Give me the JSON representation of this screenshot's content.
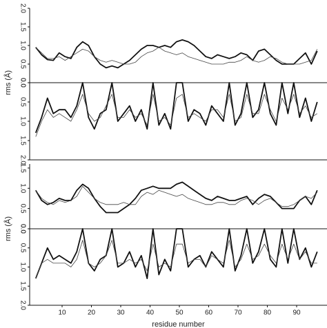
{
  "chart_data": [
    {
      "type": "line",
      "ylabel": "rms (Å)",
      "x": [
        1,
        3,
        5,
        7,
        9,
        11,
        13,
        15,
        17,
        19,
        21,
        23,
        25,
        27,
        29,
        31,
        33,
        35,
        37,
        39,
        41,
        43,
        45,
        47,
        49,
        51,
        53,
        55,
        57,
        59,
        61,
        63,
        65,
        67,
        69,
        71,
        73,
        75,
        77,
        79,
        81,
        83,
        85,
        87,
        89,
        91,
        93,
        95,
        97
      ],
      "xlim": [
        0,
        100
      ],
      "ylim": [
        0,
        2
      ],
      "yticks": [
        {
          "value": 0,
          "label": "0.0"
        },
        0.5,
        {
          "value": 1,
          "label": "1.0"
        },
        1.5,
        {
          "value": 2,
          "label": "2.0"
        }
      ],
      "y2lim": [
        0,
        2
      ],
      "y2ticks": [
        {
          "value": 0,
          "label": "0.0"
        },
        0.5,
        {
          "value": 1,
          "label": "1.0"
        },
        1.5,
        {
          "value": 2,
          "label": "2.0"
        }
      ],
      "y2_inverted": true,
      "series": [
        {
          "color": "#111111",
          "line_width": 1.8,
          "values": [
            0.95,
            0.75,
            0.62,
            0.6,
            0.8,
            0.7,
            0.65,
            0.95,
            1.1,
            1.0,
            0.7,
            0.5,
            0.4,
            0.45,
            0.4,
            0.5,
            0.6,
            0.75,
            0.9,
            1.0,
            1.0,
            0.95,
            1.0,
            0.95,
            1.1,
            1.15,
            1.1,
            1.0,
            0.85,
            0.7,
            0.65,
            0.75,
            0.7,
            0.65,
            0.7,
            0.8,
            0.75,
            0.6,
            0.85,
            0.9,
            0.75,
            0.6,
            0.5,
            0.5,
            0.5,
            0.65,
            0.8,
            0.5,
            0.85
          ]
        },
        {
          "color": "#444444",
          "line_width": 0.8,
          "values": [
            0.95,
            0.8,
            0.65,
            0.65,
            0.7,
            0.6,
            0.7,
            0.8,
            0.9,
            0.85,
            0.7,
            0.6,
            0.55,
            0.6,
            0.55,
            0.5,
            0.5,
            0.55,
            0.7,
            0.8,
            0.85,
            0.95,
            0.85,
            0.8,
            0.75,
            0.8,
            0.7,
            0.65,
            0.6,
            0.55,
            0.5,
            0.5,
            0.5,
            0.55,
            0.55,
            0.6,
            0.7,
            0.6,
            0.55,
            0.6,
            0.7,
            0.65,
            0.55,
            0.5,
            0.5,
            0.5,
            0.55,
            0.6,
            0.9
          ]
        },
        {
          "color": "#111111",
          "line_width": 1.8,
          "axis": "y2",
          "values": [
            1.3,
            0.9,
            0.4,
            0.8,
            0.7,
            0.7,
            0.9,
            0.6,
            0.0,
            0.9,
            1.2,
            0.8,
            0.7,
            0.0,
            1.0,
            0.8,
            0.6,
            1.0,
            0.7,
            1.2,
            0.0,
            1.1,
            0.8,
            1.2,
            0.0,
            0.0,
            1.0,
            0.7,
            0.8,
            1.1,
            0.6,
            0.8,
            1.0,
            0.0,
            1.1,
            0.8,
            0.0,
            0.9,
            0.7,
            0.0,
            0.8,
            1.1,
            0.0,
            0.8,
            0.0,
            0.9,
            0.4,
            1.0,
            0.5
          ]
        },
        {
          "color": "#444444",
          "line_width": 0.8,
          "axis": "y2",
          "values": [
            1.4,
            1.0,
            0.7,
            0.9,
            0.8,
            0.9,
            1.0,
            0.7,
            0.3,
            0.8,
            1.0,
            0.9,
            0.6,
            0.3,
            0.9,
            0.9,
            0.7,
            0.9,
            0.8,
            1.1,
            0.3,
            1.0,
            0.9,
            1.1,
            0.4,
            0.3,
            0.9,
            0.8,
            0.9,
            1.0,
            0.7,
            0.7,
            0.9,
            0.3,
            1.0,
            0.9,
            0.3,
            0.8,
            0.8,
            0.3,
            0.7,
            1.0,
            0.4,
            0.7,
            0.3,
            0.8,
            0.6,
            0.9,
            0.8
          ]
        }
      ]
    },
    {
      "type": "line",
      "ylabel": "rms (Å)",
      "xlabel": "residue number",
      "x": [
        1,
        3,
        5,
        7,
        9,
        11,
        13,
        15,
        17,
        19,
        21,
        23,
        25,
        27,
        29,
        31,
        33,
        35,
        37,
        39,
        41,
        43,
        45,
        47,
        49,
        51,
        53,
        55,
        57,
        59,
        61,
        63,
        65,
        67,
        69,
        71,
        73,
        75,
        77,
        79,
        81,
        83,
        85,
        87,
        89,
        91,
        93,
        95,
        97
      ],
      "xlim": [
        0,
        100
      ],
      "xticks": [
        10,
        20,
        30,
        40,
        50,
        60,
        70,
        80,
        90
      ],
      "ylim": [
        0,
        1.6
      ],
      "yticks": [
        {
          "value": 0,
          "label": "0.0"
        },
        0.5,
        {
          "value": 1,
          "label": "1.0"
        },
        1.5
      ],
      "y2lim": [
        0,
        2
      ],
      "y2ticks": [
        {
          "value": 0,
          "label": "0.0"
        },
        0.5,
        {
          "value": 1,
          "label": "1.0"
        },
        1.5,
        {
          "value": 2,
          "label": "2.0"
        }
      ],
      "y2_inverted": true,
      "series": [
        {
          "color": "#111111",
          "line_width": 1.8,
          "values": [
            0.95,
            0.7,
            0.6,
            0.65,
            0.75,
            0.7,
            0.7,
            0.95,
            1.1,
            1.0,
            0.75,
            0.55,
            0.4,
            0.4,
            0.4,
            0.5,
            0.6,
            0.75,
            0.95,
            1.0,
            1.05,
            1.0,
            1.0,
            1.0,
            1.1,
            1.15,
            1.05,
            0.95,
            0.85,
            0.75,
            0.7,
            0.8,
            0.75,
            0.7,
            0.7,
            0.75,
            0.8,
            0.6,
            0.75,
            0.85,
            0.8,
            0.65,
            0.5,
            0.5,
            0.5,
            0.7,
            0.8,
            0.6,
            0.95
          ]
        },
        {
          "color": "#444444",
          "line_width": 0.8,
          "values": [
            0.95,
            0.75,
            0.65,
            0.6,
            0.7,
            0.65,
            0.7,
            0.8,
            1.05,
            0.9,
            0.75,
            0.65,
            0.6,
            0.6,
            0.6,
            0.65,
            0.6,
            0.6,
            0.8,
            0.9,
            0.85,
            0.95,
            0.9,
            0.85,
            0.8,
            0.85,
            0.75,
            0.7,
            0.65,
            0.6,
            0.6,
            0.65,
            0.65,
            0.6,
            0.6,
            0.7,
            0.75,
            0.7,
            0.6,
            0.7,
            0.75,
            0.65,
            0.55,
            0.55,
            0.6,
            0.7,
            0.8,
            0.75,
            0.9
          ]
        },
        {
          "color": "#111111",
          "line_width": 1.8,
          "axis": "y2",
          "values": [
            1.3,
            0.9,
            0.5,
            0.8,
            0.7,
            0.8,
            0.9,
            0.6,
            0.0,
            0.9,
            1.1,
            0.8,
            0.7,
            0.0,
            1.0,
            0.9,
            0.6,
            1.0,
            0.7,
            1.3,
            0.0,
            1.2,
            0.8,
            1.1,
            0.0,
            0.0,
            1.0,
            0.8,
            0.7,
            1.0,
            0.6,
            0.8,
            1.0,
            0.0,
            1.1,
            0.7,
            0.0,
            0.9,
            0.6,
            0.0,
            0.8,
            1.0,
            0.0,
            0.9,
            0.0,
            0.8,
            0.5,
            1.0,
            0.6
          ]
        },
        {
          "color": "#444444",
          "line_width": 0.8,
          "axis": "y2",
          "values": [
            1.3,
            0.9,
            0.8,
            0.9,
            0.9,
            0.9,
            1.0,
            0.8,
            0.3,
            0.9,
            1.0,
            0.9,
            0.7,
            0.3,
            0.9,
            0.9,
            0.8,
            0.9,
            0.8,
            1.1,
            0.4,
            1.0,
            0.9,
            1.0,
            0.4,
            0.4,
            0.9,
            0.8,
            0.8,
            1.0,
            0.7,
            0.8,
            0.9,
            0.3,
            1.0,
            0.8,
            0.4,
            0.8,
            0.7,
            0.4,
            0.7,
            0.9,
            0.4,
            0.8,
            0.4,
            0.8,
            0.6,
            0.9,
            0.9
          ]
        }
      ]
    }
  ]
}
